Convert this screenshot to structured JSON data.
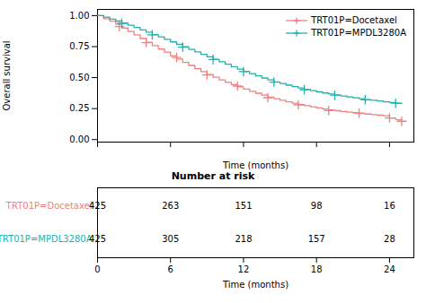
{
  "chart_data": [
    {
      "type": "line",
      "line_style": "step",
      "xlabel": "Time (months)",
      "ylabel": "Overall survival",
      "xlim": [
        0,
        26
      ],
      "ylim": [
        -0.02,
        1.05
      ],
      "xticks": [
        0,
        6,
        12,
        18,
        24
      ],
      "yticks": [
        {
          "value": 0.0,
          "label": "0.00"
        },
        {
          "value": 0.25,
          "label": "0.25"
        },
        {
          "value": 0.5,
          "label": "0.50"
        },
        {
          "value": 0.75,
          "label": "0.75"
        },
        {
          "value": 1.0,
          "label": "1.00"
        }
      ],
      "tick_labels": "y",
      "legend": "upper right",
      "series": [
        {
          "name": "TRT01P=Docetaxel",
          "color": "#F08080",
          "x": [
            0,
            0.5,
            1.0,
            1.5,
            2.0,
            2.5,
            3.0,
            3.5,
            4.0,
            4.5,
            5.0,
            5.5,
            6.0,
            6.5,
            7.0,
            7.5,
            8.0,
            8.5,
            9.0,
            9.5,
            10.0,
            10.5,
            11.0,
            11.5,
            12.0,
            12.5,
            13.0,
            13.5,
            14.0,
            14.5,
            15.0,
            15.5,
            16.0,
            16.5,
            17.0,
            17.5,
            18.0,
            18.5,
            19.0,
            19.5,
            20.0,
            20.5,
            21.0,
            21.5,
            22.0,
            22.5,
            23.0,
            23.5,
            24.0,
            24.5,
            25.0
          ],
          "values": [
            1.0,
            0.975,
            0.955,
            0.93,
            0.9,
            0.872,
            0.845,
            0.815,
            0.785,
            0.758,
            0.73,
            0.705,
            0.675,
            0.65,
            0.622,
            0.598,
            0.572,
            0.548,
            0.525,
            0.503,
            0.482,
            0.462,
            0.443,
            0.425,
            0.408,
            0.39,
            0.374,
            0.358,
            0.343,
            0.33,
            0.317,
            0.305,
            0.294,
            0.283,
            0.273,
            0.264,
            0.255,
            0.247,
            0.24,
            0.233,
            0.227,
            0.221,
            0.216,
            0.211,
            0.206,
            0.201,
            0.197,
            0.192,
            0.175,
            0.16,
            0.148
          ],
          "censored_x": [
            1.8,
            4.0,
            6.5,
            9.0,
            11.5,
            14.0,
            16.5,
            19.0,
            21.5,
            24.0,
            25.0
          ],
          "censored_values": [
            0.912,
            0.782,
            0.662,
            0.522,
            0.432,
            0.338,
            0.28,
            0.234,
            0.213,
            0.175,
            0.148
          ]
        },
        {
          "name": "TRT01P=MPDL3280A",
          "color": "#20B2AA",
          "x": [
            0,
            0.5,
            1.0,
            1.5,
            2.0,
            2.5,
            3.0,
            3.5,
            4.0,
            4.5,
            5.0,
            5.5,
            6.0,
            6.5,
            7.0,
            7.5,
            8.0,
            8.5,
            9.0,
            9.5,
            10.0,
            10.5,
            11.0,
            11.5,
            12.0,
            12.5,
            13.0,
            13.5,
            14.0,
            14.5,
            15.0,
            15.5,
            16.0,
            16.5,
            17.0,
            17.5,
            18.0,
            18.5,
            19.0,
            19.5,
            20.0,
            20.5,
            21.0,
            21.5,
            22.0,
            22.5,
            23.0,
            23.5,
            24.0,
            24.5,
            25.0
          ],
          "values": [
            1.0,
            0.988,
            0.972,
            0.956,
            0.94,
            0.922,
            0.904,
            0.885,
            0.866,
            0.847,
            0.828,
            0.808,
            0.788,
            0.768,
            0.748,
            0.728,
            0.708,
            0.688,
            0.668,
            0.648,
            0.628,
            0.608,
            0.588,
            0.568,
            0.55,
            0.532,
            0.514,
            0.497,
            0.481,
            0.466,
            0.452,
            0.439,
            0.427,
            0.416,
            0.405,
            0.395,
            0.385,
            0.376,
            0.368,
            0.36,
            0.352,
            0.344,
            0.337,
            0.33,
            0.323,
            0.317,
            0.311,
            0.305,
            0.299,
            0.294,
            0.289
          ],
          "censored_x": [
            2.0,
            4.5,
            7.0,
            9.5,
            12.0,
            14.5,
            17.0,
            19.5,
            22.0,
            24.5
          ],
          "censored_values": [
            0.938,
            0.845,
            0.746,
            0.646,
            0.548,
            0.464,
            0.403,
            0.358,
            0.321,
            0.293
          ]
        }
      ]
    },
    {
      "type": "table",
      "title": "Number at risk",
      "xlabel": "Time (months)",
      "xlim": [
        0,
        26
      ],
      "xticks": [
        0,
        6,
        12,
        18,
        24
      ],
      "x": [
        0,
        6,
        12,
        18,
        24
      ],
      "rows": [
        {
          "name": "TRT01P=Docetaxel",
          "color": "#F08080",
          "values": [
            425,
            263,
            151,
            98,
            16
          ]
        },
        {
          "name": "TRT01P=MPDL3280A",
          "color": "#20B2AA",
          "values": [
            425,
            305,
            218,
            157,
            28
          ]
        }
      ]
    }
  ]
}
